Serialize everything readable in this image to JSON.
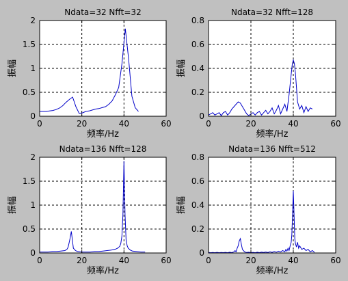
{
  "chart_data": [
    {
      "type": "line",
      "title": "Ndata=32 Nfft=32",
      "xlabel": "频率/Hz",
      "ylabel": "振幅",
      "xlim": [
        0,
        60
      ],
      "ylim": [
        0,
        2
      ],
      "xticks": [
        0,
        20,
        40,
        60
      ],
      "yticks": [
        0,
        0.5,
        1,
        1.5,
        2
      ],
      "xtick_labels": [
        "0",
        "20",
        "40",
        "60"
      ],
      "ytick_labels": [
        "0",
        "0.5",
        "1",
        "1.5",
        "2"
      ],
      "grid": "dashed",
      "color": "#0000c8",
      "series": [
        {
          "x": [
            0,
            1.56,
            3.13,
            4.69,
            6.25,
            7.81,
            9.38,
            10.94,
            12.5,
            14.06,
            15.63,
            17.19,
            18.75,
            20.31,
            21.88,
            23.44,
            25,
            26.56,
            28.13,
            29.69,
            31.25,
            32.81,
            34.38,
            35.94,
            37.5,
            39.06,
            40.63,
            42.19,
            43.75,
            45.31,
            46.88
          ],
          "y": [
            0.1,
            0.1,
            0.1,
            0.11,
            0.12,
            0.14,
            0.17,
            0.22,
            0.29,
            0.35,
            0.4,
            0.2,
            0.06,
            0.07,
            0.1,
            0.11,
            0.13,
            0.15,
            0.16,
            0.18,
            0.2,
            0.25,
            0.32,
            0.45,
            0.6,
            1.1,
            1.83,
            1.2,
            0.42,
            0.18,
            0.1
          ]
        }
      ]
    },
    {
      "type": "line",
      "title": "Ndata=32 Nfft=128",
      "xlabel": "频率/Hz",
      "ylabel": "振幅",
      "xlim": [
        0,
        60
      ],
      "ylim": [
        0,
        0.8
      ],
      "xticks": [
        0,
        20,
        40,
        60
      ],
      "yticks": [
        0,
        0.2,
        0.4,
        0.6,
        0.8
      ],
      "xtick_labels": [
        "0",
        "20",
        "40",
        "60"
      ],
      "ytick_labels": [
        "0",
        "0.2",
        "0.4",
        "0.6",
        "0.8"
      ],
      "grid": "dashed",
      "color": "#0000c8",
      "series": [
        {
          "x": [
            0,
            1,
            2,
            3,
            4,
            5,
            6,
            7,
            8,
            9,
            10,
            11,
            12,
            13,
            14,
            15,
            16,
            17,
            18,
            19,
            20,
            21,
            22,
            23,
            24,
            25,
            26,
            27,
            28,
            29,
            30,
            31,
            32,
            33,
            34,
            35,
            36,
            37,
            38,
            39,
            39.5,
            40,
            40.5,
            41,
            42,
            43,
            44,
            45,
            46,
            47,
            48,
            49
          ],
          "y": [
            0.01,
            0.02,
            0.03,
            0.01,
            0.02,
            0.03,
            0.005,
            0.03,
            0.04,
            0.01,
            0.03,
            0.06,
            0.08,
            0.1,
            0.12,
            0.11,
            0.08,
            0.05,
            0.02,
            0.005,
            0.02,
            0.03,
            0.01,
            0.03,
            0.04,
            0.01,
            0.03,
            0.05,
            0.02,
            0.04,
            0.07,
            0.02,
            0.05,
            0.09,
            0.02,
            0.06,
            0.1,
            0.04,
            0.18,
            0.35,
            0.43,
            0.47,
            0.44,
            0.36,
            0.12,
            0.06,
            0.09,
            0.03,
            0.08,
            0.04,
            0.07,
            0.06
          ]
        }
      ]
    },
    {
      "type": "line",
      "title": "Ndata=136 Nfft=128",
      "xlabel": "频率/Hz",
      "ylabel": "振幅",
      "xlim": [
        0,
        60
      ],
      "ylim": [
        0,
        2
      ],
      "xticks": [
        0,
        20,
        40,
        60
      ],
      "yticks": [
        0,
        0.5,
        1,
        1.5,
        2
      ],
      "xtick_labels": [
        "0",
        "20",
        "40",
        "60"
      ],
      "ytick_labels": [
        "0",
        "0.5",
        "1",
        "1.5",
        "2"
      ],
      "grid": "dashed",
      "color": "#0000c8",
      "series": [
        {
          "x": [
            0,
            2,
            4,
            6,
            8,
            10,
            12,
            13,
            13.5,
            14,
            14.5,
            15,
            15.5,
            16,
            17,
            18,
            20,
            22,
            24,
            26,
            28,
            30,
            32,
            34,
            36,
            37,
            38,
            38.5,
            39,
            39.5,
            40,
            40.5,
            41,
            41.5,
            42,
            43,
            44,
            46,
            48,
            50
          ],
          "y": [
            0.02,
            0.02,
            0.02,
            0.03,
            0.03,
            0.04,
            0.05,
            0.08,
            0.12,
            0.22,
            0.32,
            0.45,
            0.28,
            0.1,
            0.05,
            0.03,
            0.02,
            0.02,
            0.02,
            0.03,
            0.03,
            0.04,
            0.05,
            0.06,
            0.08,
            0.1,
            0.14,
            0.2,
            0.35,
            0.8,
            1.92,
            0.8,
            0.28,
            0.15,
            0.1,
            0.06,
            0.04,
            0.03,
            0.02,
            0.02
          ]
        }
      ]
    },
    {
      "type": "line",
      "title": "Ndata=136 Nfft=512",
      "xlabel": "频率/Hz",
      "ylabel": "振幅",
      "xlim": [
        0,
        60
      ],
      "ylim": [
        0,
        0.8
      ],
      "xticks": [
        0,
        20,
        40,
        60
      ],
      "yticks": [
        0,
        0.2,
        0.4,
        0.6,
        0.8
      ],
      "xtick_labels": [
        "0",
        "20",
        "40",
        "60"
      ],
      "ytick_labels": [
        "0",
        "0.2",
        "0.4",
        "0.6",
        "0.8"
      ],
      "grid": "dashed",
      "color": "#0000c8",
      "series": [
        {
          "x": [
            0,
            1,
            2,
            3,
            4,
            5,
            6,
            7,
            8,
            9,
            10,
            11,
            12,
            12.5,
            13,
            13.5,
            14,
            14.5,
            15,
            15.5,
            16,
            16.5,
            17,
            18,
            19,
            20,
            21,
            22,
            23,
            24,
            25,
            26,
            27,
            28,
            29,
            30,
            31,
            32,
            33,
            34,
            35,
            36,
            36.5,
            37,
            37.5,
            38,
            38.5,
            39,
            39.3,
            39.6,
            40,
            40.4,
            40.7,
            41,
            41.5,
            42,
            42.5,
            43,
            44,
            45,
            46,
            47,
            48,
            49,
            50
          ],
          "y": [
            0.005,
            0.002,
            0.004,
            0.002,
            0.005,
            0.002,
            0.004,
            0.003,
            0.005,
            0.002,
            0.006,
            0.003,
            0.01,
            0.02,
            0.01,
            0.04,
            0.06,
            0.1,
            0.12,
            0.07,
            0.03,
            0.02,
            0.01,
            0.004,
            0.006,
            0.002,
            0.005,
            0.002,
            0.006,
            0.003,
            0.007,
            0.004,
            0.008,
            0.004,
            0.01,
            0.005,
            0.012,
            0.006,
            0.015,
            0.008,
            0.02,
            0.01,
            0.03,
            0.015,
            0.04,
            0.02,
            0.06,
            0.09,
            0.15,
            0.3,
            0.52,
            0.3,
            0.12,
            0.08,
            0.05,
            0.09,
            0.04,
            0.06,
            0.03,
            0.04,
            0.02,
            0.03,
            0.01,
            0.02,
            0.005
          ]
        }
      ]
    }
  ]
}
